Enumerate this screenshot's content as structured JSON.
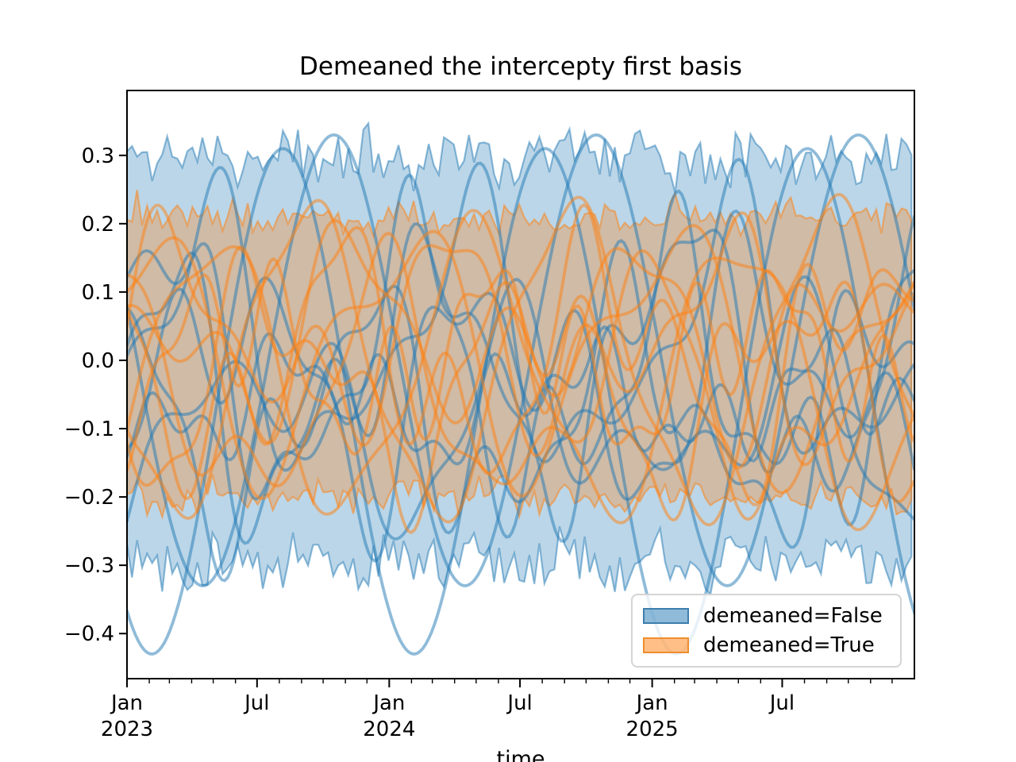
{
  "chart_data": {
    "type": "line",
    "title": "Demeaned the intercepty first basis",
    "xlabel": "time",
    "ylabel": "",
    "x_axis": {
      "start": "2023-01-01",
      "end": "2026-01-01",
      "unit": "days",
      "xlim_days": [
        0,
        1096
      ],
      "major_ticks": [
        {
          "day": 0,
          "label": "Jan",
          "year": "2023"
        },
        {
          "day": 181,
          "label": "Jul",
          "year": ""
        },
        {
          "day": 365,
          "label": "Jan",
          "year": "2024"
        },
        {
          "day": 547,
          "label": "Jul",
          "year": ""
        },
        {
          "day": 731,
          "label": "Jan",
          "year": "2025"
        },
        {
          "day": 912,
          "label": "Jul",
          "year": ""
        }
      ],
      "minor_ticks_days": [
        31,
        59,
        90,
        120,
        151,
        212,
        243,
        273,
        304,
        334,
        396,
        425,
        456,
        486,
        517,
        578,
        609,
        639,
        670,
        700,
        762,
        790,
        821,
        851,
        882,
        943,
        974,
        1004,
        1035,
        1065
      ]
    },
    "y_axis": {
      "ylim": [
        -0.466,
        0.395
      ],
      "ticks": [
        0.3,
        0.2,
        0.1,
        0.0,
        -0.1,
        -0.2,
        -0.3,
        -0.4
      ]
    },
    "grid": false,
    "legend": {
      "location": "lower right",
      "entries": [
        {
          "label": "demeaned=False",
          "color": "#1f77b4"
        },
        {
          "label": "demeaned=True",
          "color": "#ff7f0e"
        }
      ]
    },
    "colors": {
      "demeaned_false": "#1f77b4",
      "demeaned_true": "#ff7f0e"
    },
    "bands": [
      {
        "series": "demeaned=False",
        "color": "#1f77b4",
        "fill_alpha": 0.3,
        "edge_alpha": 0.5,
        "upper_mean": 0.3,
        "lower_mean": -0.295,
        "noise": 0.028,
        "wave": 0.012,
        "step_days": 7,
        "seed": 11
      },
      {
        "series": "demeaned=True",
        "color": "#ff7f0e",
        "fill_alpha": 0.3,
        "edge_alpha": 0.5,
        "upper_mean": 0.21,
        "lower_mean": -0.2,
        "noise": 0.017,
        "wave": 0.008,
        "step_days": 7,
        "seed": 23
      }
    ],
    "sample_curves": [
      {
        "series": "demeaned=False",
        "color": "#1f77b4",
        "alpha": 0.5,
        "offset": -0.06,
        "components": [
          [
            0.37,
            365,
            217
          ]
        ]
      },
      {
        "series": "demeaned=False",
        "color": "#1f77b4",
        "alpha": 0.5,
        "offset": 0.0,
        "components": [
          [
            0.33,
            365,
            288
          ]
        ]
      },
      {
        "series": "demeaned=False",
        "color": "#1f77b4",
        "alpha": 0.5,
        "offset": -0.04,
        "components": [
          [
            0.14,
            365,
            30
          ],
          [
            0.1,
            170,
            85
          ],
          [
            0.05,
            95,
            10
          ]
        ]
      },
      {
        "series": "demeaned=False",
        "color": "#1f77b4",
        "alpha": 0.5,
        "offset": -0.03,
        "components": [
          [
            0.12,
            365,
            150
          ],
          [
            0.09,
            200,
            40
          ],
          [
            0.06,
            110,
            75
          ]
        ]
      },
      {
        "series": "demeaned=False",
        "color": "#1f77b4",
        "alpha": 0.5,
        "offset": -0.06,
        "components": [
          [
            0.05,
            365,
            250
          ],
          [
            0.045,
            150,
            60
          ],
          [
            0.035,
            80,
            30
          ]
        ]
      },
      {
        "series": "demeaned=False",
        "color": "#1f77b4",
        "alpha": 0.5,
        "offset": 0.02,
        "components": [
          [
            0.16,
            365,
            100
          ],
          [
            0.08,
            180,
            130
          ],
          [
            0.05,
            120,
            20
          ]
        ]
      },
      {
        "series": "demeaned=False",
        "color": "#1f77b4",
        "alpha": 0.5,
        "offset": -0.08,
        "components": [
          [
            0.14,
            365,
            330
          ],
          [
            0.07,
            160,
            200
          ],
          [
            0.05,
            100,
            90
          ]
        ]
      },
      {
        "series": "demeaned=False",
        "color": "#1f77b4",
        "alpha": 0.5,
        "offset": 0.0,
        "components": [
          [
            0.18,
            365,
            45
          ],
          [
            0.06,
            140,
            250
          ],
          [
            0.04,
            90,
            120
          ]
        ]
      },
      {
        "series": "demeaned=False",
        "color": "#1f77b4",
        "alpha": 0.5,
        "offset": -0.09,
        "components": [
          [
            0.1,
            365,
            190
          ],
          [
            0.08,
            220,
            300
          ],
          [
            0.05,
            130,
            160
          ]
        ]
      },
      {
        "series": "demeaned=True",
        "color": "#ff7f0e",
        "alpha": 0.5,
        "offset": 0.0,
        "components": [
          [
            0.22,
            365,
            250
          ],
          [
            0.03,
            120,
            40
          ]
        ]
      },
      {
        "series": "demeaned=True",
        "color": "#ff7f0e",
        "alpha": 0.5,
        "offset": -0.02,
        "components": [
          [
            0.2,
            365,
            120
          ],
          [
            0.04,
            150,
            30
          ]
        ]
      },
      {
        "series": "demeaned=True",
        "color": "#ff7f0e",
        "alpha": 0.5,
        "offset": 0.02,
        "components": [
          [
            0.16,
            365,
            20
          ],
          [
            0.07,
            180,
            90
          ]
        ]
      },
      {
        "series": "demeaned=True",
        "color": "#ff7f0e",
        "alpha": 0.5,
        "offset": 0.0,
        "components": [
          [
            0.13,
            365,
            300
          ],
          [
            0.08,
            160,
            140
          ],
          [
            0.05,
            100,
            40
          ]
        ]
      },
      {
        "series": "demeaned=True",
        "color": "#ff7f0e",
        "alpha": 0.5,
        "offset": 0.03,
        "components": [
          [
            0.1,
            365,
            80
          ],
          [
            0.08,
            200,
            250
          ],
          [
            0.05,
            120,
            150
          ]
        ]
      },
      {
        "series": "demeaned=True",
        "color": "#ff7f0e",
        "alpha": 0.5,
        "offset": -0.03,
        "components": [
          [
            0.12,
            365,
            200
          ],
          [
            0.07,
            170,
            320
          ],
          [
            0.04,
            95,
            60
          ]
        ]
      },
      {
        "series": "demeaned=True",
        "color": "#ff7f0e",
        "alpha": 0.5,
        "offset": 0.0,
        "components": [
          [
            0.08,
            365,
            150
          ],
          [
            0.07,
            140,
            80
          ],
          [
            0.05,
            85,
            200
          ]
        ]
      },
      {
        "series": "demeaned=True",
        "color": "#ff7f0e",
        "alpha": 0.5,
        "offset": -0.05,
        "components": [
          [
            0.15,
            365,
            355
          ],
          [
            0.06,
            190,
            170
          ],
          [
            0.03,
            110,
            260
          ]
        ]
      },
      {
        "series": "demeaned=True",
        "color": "#ff7f0e",
        "alpha": 0.5,
        "offset": 0.04,
        "components": [
          [
            0.09,
            365,
            320
          ],
          [
            0.07,
            210,
            100
          ],
          [
            0.05,
            130,
            10
          ]
        ]
      }
    ]
  }
}
